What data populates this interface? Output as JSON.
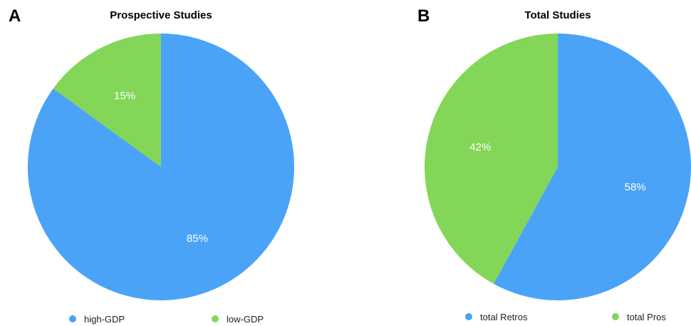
{
  "chart_data": [
    {
      "type": "pie",
      "panel_label": "A",
      "title": "Prospective Studies",
      "slices": [
        {
          "label": "high-GDP",
          "value": 85,
          "value_label": "85%",
          "color": "#4aa3f7"
        },
        {
          "label": "low-GDP",
          "value": 15,
          "value_label": "15%",
          "color": "#84d658"
        }
      ],
      "start": "12 o'clock",
      "direction": "clockwise",
      "legend_position": "bottom"
    },
    {
      "type": "pie",
      "panel_label": "B",
      "title": "Total Studies",
      "slices": [
        {
          "label": "total Retros",
          "value": 58,
          "value_label": "58%",
          "color": "#4aa3f7"
        },
        {
          "label": "total Pros",
          "value": 42,
          "value_label": "42%",
          "color": "#84d658"
        }
      ],
      "start": "12 o'clock",
      "direction": "clockwise",
      "legend_position": "bottom"
    }
  ]
}
